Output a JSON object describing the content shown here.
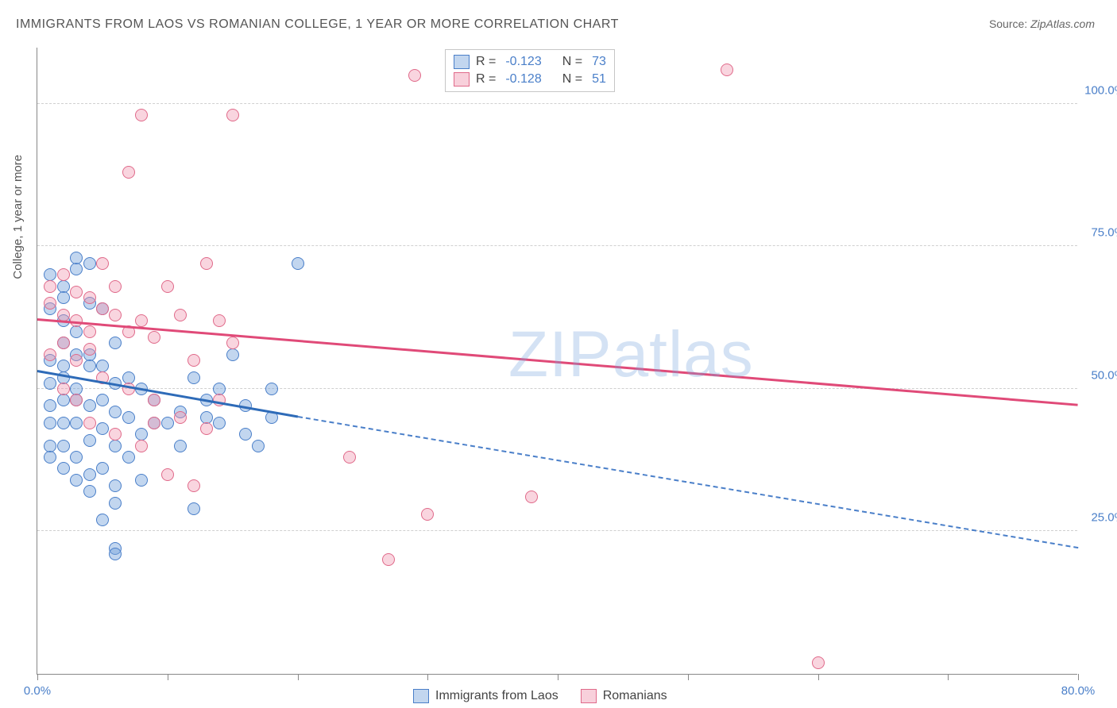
{
  "title": "IMMIGRANTS FROM LAOS VS ROMANIAN COLLEGE, 1 YEAR OR MORE CORRELATION CHART",
  "source_label": "Source:",
  "source_value": "ZipAtlas.com",
  "watermark": "ZIPatlas",
  "y_axis_title": "College, 1 year or more",
  "chart": {
    "type": "scatter",
    "x_range": [
      0,
      80
    ],
    "y_range": [
      0,
      110
    ],
    "y_ticks": [
      25,
      50,
      75,
      100
    ],
    "y_tick_labels": [
      "25.0%",
      "50.0%",
      "75.0%",
      "100.0%"
    ],
    "x_ticks": [
      0,
      10,
      20,
      30,
      40,
      50,
      60,
      70,
      80
    ],
    "x_labels_shown": {
      "0": "0.0%",
      "80": "80.0%"
    },
    "background": "#ffffff",
    "grid_color": "#d0d0d0",
    "axis_color": "#888888",
    "label_color": "#4a7fc9",
    "series": [
      {
        "name": "Immigrants from Laos",
        "color_fill": "rgba(120,165,220,0.45)",
        "color_stroke": "#4a7fc9",
        "marker_size": 16,
        "r": -0.123,
        "n": 73,
        "regression": {
          "x1": 0,
          "y1": 53,
          "x2": 20,
          "y2": 45,
          "extrap_x2": 80,
          "extrap_y2": 22
        },
        "points": [
          [
            1,
            70
          ],
          [
            2,
            68
          ],
          [
            3,
            71
          ],
          [
            4,
            65
          ],
          [
            2,
            62
          ],
          [
            5,
            64
          ],
          [
            3,
            60
          ],
          [
            6,
            58
          ],
          [
            1,
            55
          ],
          [
            4,
            56
          ],
          [
            2,
            52
          ],
          [
            5,
            54
          ],
          [
            7,
            52
          ],
          [
            3,
            50
          ],
          [
            6,
            51
          ],
          [
            8,
            50
          ],
          [
            2,
            48
          ],
          [
            4,
            47
          ],
          [
            6,
            46
          ],
          [
            9,
            48
          ],
          [
            3,
            44
          ],
          [
            5,
            43
          ],
          [
            7,
            45
          ],
          [
            10,
            44
          ],
          [
            2,
            40
          ],
          [
            4,
            41
          ],
          [
            6,
            40
          ],
          [
            8,
            42
          ],
          [
            11,
            46
          ],
          [
            13,
            45
          ],
          [
            3,
            38
          ],
          [
            5,
            36
          ],
          [
            7,
            38
          ],
          [
            9,
            44
          ],
          [
            14,
            44
          ],
          [
            16,
            47
          ],
          [
            18,
            45
          ],
          [
            4,
            35
          ],
          [
            6,
            33
          ],
          [
            8,
            34
          ],
          [
            6,
            30
          ],
          [
            5,
            27
          ],
          [
            6,
            22
          ],
          [
            6,
            21
          ],
          [
            12,
            29
          ],
          [
            20,
            72
          ],
          [
            4,
            72
          ],
          [
            3,
            73
          ],
          [
            1,
            64
          ],
          [
            2,
            58
          ],
          [
            1,
            51
          ],
          [
            1,
            47
          ],
          [
            1,
            44
          ],
          [
            1,
            40
          ],
          [
            2,
            44
          ],
          [
            2,
            36
          ],
          [
            3,
            34
          ],
          [
            4,
            32
          ],
          [
            11,
            40
          ],
          [
            12,
            52
          ],
          [
            14,
            50
          ],
          [
            15,
            56
          ],
          [
            16,
            42
          ],
          [
            17,
            40
          ],
          [
            18,
            50
          ],
          [
            13,
            48
          ],
          [
            3,
            48
          ],
          [
            4,
            54
          ],
          [
            5,
            48
          ],
          [
            2,
            54
          ],
          [
            1,
            38
          ],
          [
            3,
            56
          ],
          [
            2,
            66
          ]
        ]
      },
      {
        "name": "Romanians",
        "color_fill": "rgba(240,150,175,0.4)",
        "color_stroke": "#e06a8a",
        "marker_size": 16,
        "r": -0.128,
        "n": 51,
        "regression": {
          "x1": 0,
          "y1": 62,
          "x2": 80,
          "y2": 47
        },
        "points": [
          [
            1,
            68
          ],
          [
            2,
            70
          ],
          [
            3,
            67
          ],
          [
            1,
            65
          ],
          [
            4,
            66
          ],
          [
            2,
            63
          ],
          [
            5,
            64
          ],
          [
            3,
            62
          ],
          [
            6,
            63
          ],
          [
            7,
            60
          ],
          [
            2,
            58
          ],
          [
            4,
            57
          ],
          [
            8,
            62
          ],
          [
            9,
            59
          ],
          [
            10,
            68
          ],
          [
            11,
            63
          ],
          [
            13,
            72
          ],
          [
            14,
            62
          ],
          [
            15,
            58
          ],
          [
            3,
            55
          ],
          [
            5,
            52
          ],
          [
            7,
            50
          ],
          [
            9,
            48
          ],
          [
            11,
            45
          ],
          [
            13,
            43
          ],
          [
            4,
            44
          ],
          [
            6,
            42
          ],
          [
            8,
            40
          ],
          [
            10,
            35
          ],
          [
            12,
            33
          ],
          [
            8,
            98
          ],
          [
            15,
            98
          ],
          [
            29,
            105
          ],
          [
            32,
            105
          ],
          [
            37,
            105
          ],
          [
            53,
            106
          ],
          [
            7,
            88
          ],
          [
            24,
            38
          ],
          [
            30,
            28
          ],
          [
            38,
            31
          ],
          [
            27,
            20
          ],
          [
            14,
            48
          ],
          [
            60,
            2
          ],
          [
            9,
            44
          ],
          [
            12,
            55
          ],
          [
            6,
            68
          ],
          [
            5,
            72
          ],
          [
            4,
            60
          ],
          [
            3,
            48
          ],
          [
            2,
            50
          ],
          [
            1,
            56
          ]
        ]
      }
    ]
  },
  "legend_top": {
    "r_label": "R =",
    "n_label": "N ="
  },
  "legend_bottom": {
    "series1": "Immigrants from Laos",
    "series2": "Romanians"
  }
}
